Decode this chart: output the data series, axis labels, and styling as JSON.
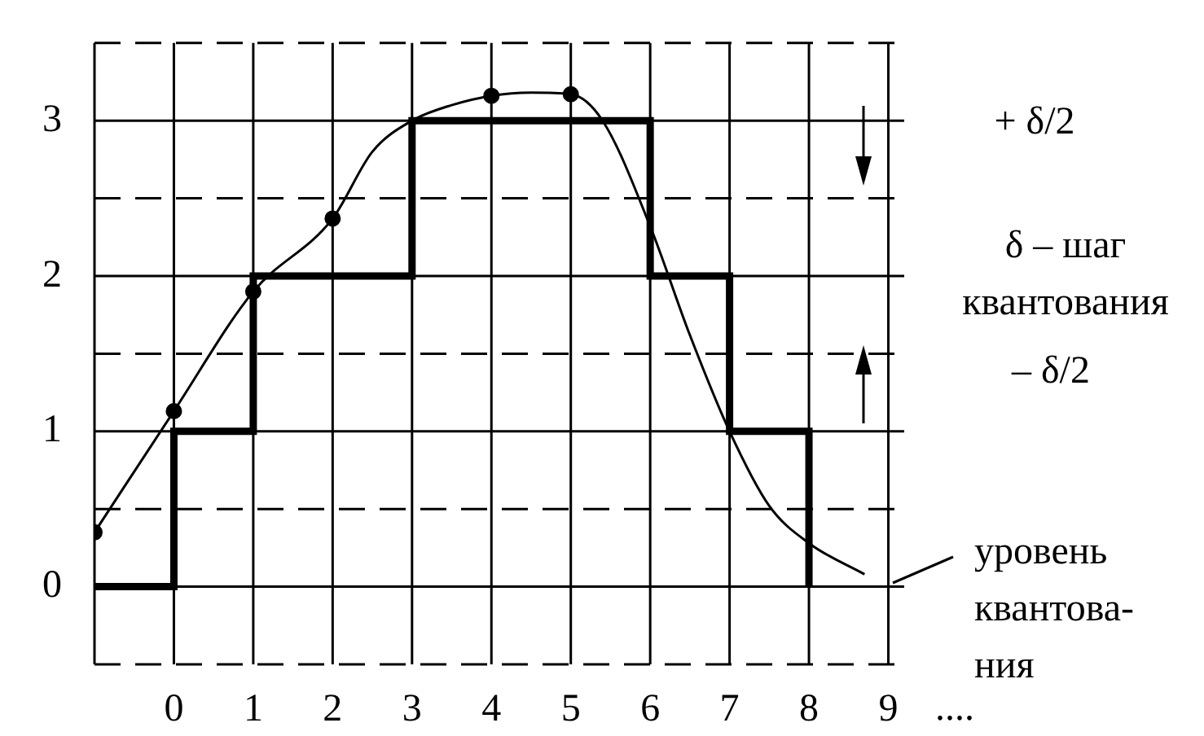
{
  "chart_data": {
    "type": "line",
    "xlim": [
      -1,
      9.2
    ],
    "ylim": [
      -0.5,
      3.5
    ],
    "xticks": [
      {
        "value": -1,
        "label": null
      },
      0,
      1,
      2,
      3,
      4,
      5,
      6,
      7,
      8,
      9
    ],
    "yticks": [
      {
        "value": -0.5,
        "label": null
      },
      0,
      {
        "value": 0.5,
        "label": null
      },
      1,
      {
        "value": 1.5,
        "label": null
      },
      2,
      {
        "value": 2.5,
        "label": null
      },
      3,
      {
        "value": 3.5,
        "label": null
      }
    ],
    "grid": true,
    "legend": false,
    "marker": "none",
    "line_style": "solid",
    "series": [
      {
        "color": "#000000",
        "x": [
          -1,
          0,
          1,
          2,
          2.5,
          3,
          3.5,
          4,
          4.5,
          5,
          5.4,
          6,
          6.5,
          7,
          7.5,
          8,
          8.7
        ],
        "values": [
          0.35,
          1.13,
          1.9,
          2.37,
          2.8,
          3.0,
          3.1,
          3.16,
          3.18,
          3.17,
          3.0,
          2.32,
          1.62,
          1.0,
          0.52,
          0.28,
          0.08
        ]
      },
      {
        "type": "step",
        "color": "#000000",
        "x": [
          -1,
          0,
          1,
          2,
          3,
          4,
          5,
          6,
          7,
          8
        ],
        "values": [
          0,
          1,
          2,
          2,
          3,
          3,
          3,
          2,
          1,
          0
        ]
      },
      {
        "type": "scatter",
        "color": "#000000",
        "marker": "circle",
        "x": [
          -1,
          0,
          1,
          2,
          4,
          5
        ],
        "values": [
          0.35,
          1.13,
          1.9,
          2.37,
          3.16,
          3.17
        ]
      }
    ],
    "annotations": [
      "+ δ/2",
      "δ – шаг\nквантования",
      "– δ/2",
      "уровень\nквантова-\nния",
      "...."
    ]
  }
}
